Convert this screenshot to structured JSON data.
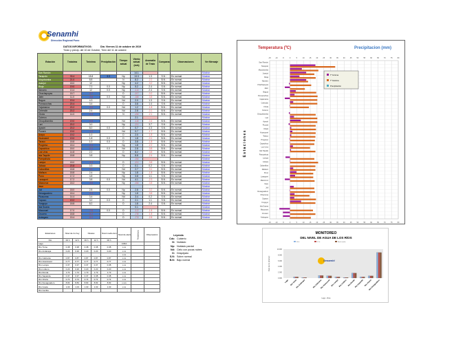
{
  "header": {
    "logo_name": "Senamhi",
    "logo_sub": "Dirección Regional Puno",
    "info_label": "DATOS INFORMATIVOS:",
    "date": "Día: Viernes 11 de octubre de 2019",
    "note": "Tmáx y precip. del 10 de Octubre, Tmín del 11 de octubre"
  },
  "stations": {
    "columns": [
      "Estación",
      "Tmáxima",
      "Tmínima",
      "Precipitación",
      "Tiempo actual",
      "Viento actual (m/s)",
      "Anomalía de Tmáx",
      "Comparación",
      "Observaciones",
      "Ver Mensaje"
    ],
    "rows": [
      {
        "name": "San Ramón",
        "tmax": "",
        "tmin": "",
        "pp": "",
        "tiempo": "",
        "viento": "14.1",
        "anom": "",
        "comp": "",
        "dir": "",
        "obs": "",
        "link": "Mostrar",
        "group": "green"
      },
      {
        "name": "Tarapoto",
        "tmax": "33.4",
        "tmin": "18.8",
        "pp": "3.3",
        "tiempo": "Np",
        "viento": "13.3",
        "anom": "1.3",
        "comp": "S.N",
        "dir": "up",
        "obs": "En normal",
        "link": "Mostrar",
        "group": "green"
      },
      {
        "name": "Moyobamba",
        "tmax": "21.0",
        "tmin": "8.8",
        "pp": "",
        "tiempo": "N",
        "viento": "8.2",
        "anom": "-2.2",
        "comp": "B.N",
        "dir": "dn",
        "obs": "En normal",
        "link": "Mostrar",
        "group": "green"
      },
      {
        "name": "Juanjuí",
        "tmax": "18.0",
        "tmin": "12",
        "pp": "",
        "tiempo": "Np",
        "viento": "4.2",
        "anom": "-3.2",
        "comp": "B.N",
        "dir": "dn",
        "obs": "En normal",
        "link": "Mostrar",
        "group": "green"
      },
      {
        "name": "Rioja",
        "tmax": "19.0",
        "tmin": "7.0",
        "pp": "0.0",
        "tiempo": "Np",
        "viento": "5.2",
        "anom": "2.4",
        "comp": "S.N",
        "dir": "up",
        "obs": "En normal",
        "link": "Mostrar",
        "group": "green"
      },
      {
        "name": "Navarro",
        "tmax": "13.4",
        "tmin": "12",
        "pp": "0.0",
        "tiempo": "Np",
        "viento": "-1.4",
        "anom": "2.4",
        "comp": "S.N",
        "dir": "up",
        "obs": "En normal",
        "link": "Mostrar",
        "group": "gray"
      },
      {
        "name": "Chachapoyas",
        "tmax": "15.7",
        "tmin": "-0.7",
        "pp": "",
        "tiempo": "D",
        "viento": "-0.7",
        "anom": "-0.2",
        "comp": "B.N",
        "dir": "dn",
        "obs": "En normal",
        "link": "Mostrar",
        "group": "gray"
      },
      {
        "name": "Jaén",
        "tmax": "11.0",
        "tmin": "-3.8",
        "pp": "0.0",
        "tiempo": "Nd",
        "viento": "-3.8",
        "anom": "-3.8",
        "comp": "B.N",
        "dir": "dn",
        "obs": "En normal",
        "link": "Mostrar",
        "group": "gray"
      },
      {
        "name": "Bagua",
        "tmax": "19.4",
        "tmin": "4.3",
        "pp": "",
        "tiempo": "Nd",
        "viento": "2.0",
        "anom": "1.3",
        "comp": "S.N",
        "dir": "up",
        "obs": "En normal",
        "link": "Mostrar",
        "group": "gray"
      },
      {
        "name": "Pomacochas",
        "tmax": "20.4",
        "tmin": "3.4",
        "pp": "",
        "tiempo": "D",
        "viento": "3.8",
        "anom": "1.4",
        "comp": "S.N",
        "dir": "up",
        "obs": "En normal",
        "link": "Mostrar",
        "group": "gray"
      },
      {
        "name": "Cajamarca",
        "tmax": "20.2",
        "tmin": "-3.8",
        "pp": "0.0",
        "tiempo": "Nd",
        "viento": "1.2",
        "anom": "-1.8",
        "comp": "B.N",
        "dir": "dn",
        "obs": "En normal",
        "link": "Mostrar",
        "group": "gray"
      },
      {
        "name": "Celendín",
        "tmax": "20.2",
        "tmin": "2.4",
        "pp": "",
        "tiempo": "Nd",
        "viento": "2.8",
        "anom": "-0.1",
        "comp": "B.N",
        "dir": "dn",
        "obs": "En normal",
        "link": "Mostrar",
        "group": "gray"
      },
      {
        "name": "Chota",
        "tmax": "14.0",
        "tmin": "-0.3",
        "pp": "",
        "tiempo": "N",
        "viento": "-2.6",
        "anom": "-2.1",
        "comp": "B.N",
        "dir": "dn",
        "obs": "En normal",
        "link": "Mostrar",
        "group": "gray"
      },
      {
        "name": "Cutervo",
        "tmax": "",
        "tmin": "",
        "pp": "",
        "tiempo": "",
        "viento": "2.1",
        "anom": "",
        "comp": "",
        "dir": "",
        "obs": "",
        "link": "Mostrar",
        "group": "gray"
      },
      {
        "name": "Chuquibamba",
        "tmax": "19.0",
        "tmin": "-0.8",
        "pp": "",
        "tiempo": "Nd",
        "viento": "-1.8",
        "anom": "-0.4",
        "comp": "B.N",
        "dir": "dn",
        "obs": "En normal",
        "link": "Mostrar",
        "group": "gray"
      },
      {
        "name": "Lari",
        "tmax": "20.2",
        "tmin": "3.0",
        "pp": "",
        "tiempo": "Np",
        "viento": "-2.1",
        "anom": "3.7",
        "comp": "S.N",
        "dir": "up",
        "obs": "En normal",
        "link": "Mostrar",
        "group": "gray"
      },
      {
        "name": "Ayaviri",
        "tmax": "20.2",
        "tmin": "8.0",
        "pp": "0.0",
        "tiempo": "D",
        "viento": "0.7",
        "anom": "4.3",
        "comp": "S.N",
        "dir": "up",
        "obs": "En normal",
        "link": "Mostrar",
        "group": "gray"
      },
      {
        "name": "Pucará",
        "tmax": "19.0",
        "tmin": "-1.0",
        "pp": "",
        "tiempo": "Nd",
        "viento": "0.7",
        "anom": "-1.7",
        "comp": "B.N",
        "dir": "dn",
        "obs": "En normal",
        "link": "Mostrar",
        "group": "gray"
      },
      {
        "name": "Arapa",
        "tmax": "19.2",
        "tmin": "1.0",
        "pp": "",
        "tiempo": "D",
        "viento": "2.0",
        "anom": "-1.8",
        "comp": "B.N",
        "dir": "dn",
        "obs": "En normal",
        "link": "Mostrar",
        "group": "orange"
      },
      {
        "name": "Huancané",
        "tmax": "19.0",
        "tmin": "1.8",
        "pp": "0.0",
        "tiempo": "D",
        "viento": "1.8",
        "anom": "-0.1",
        "comp": "B.N",
        "dir": "dn",
        "obs": "En normal",
        "link": "Mostrar",
        "group": "orange"
      },
      {
        "name": "Taraco",
        "tmax": "18.8",
        "tmin": "1.0",
        "pp": "0.0",
        "tiempo": "D",
        "viento": "3.8",
        "anom": "-1.8",
        "comp": "B.N",
        "dir": "dn",
        "obs": "En normal",
        "link": "Mostrar",
        "group": "orange"
      },
      {
        "name": "Progreso",
        "tmax": "18.4",
        "tmin": "-0.4",
        "pp": "",
        "tiempo": "Np",
        "viento": "1.8",
        "anom": "-2.2",
        "comp": "B.N",
        "dir": "dn",
        "obs": "En normal",
        "link": "Mostrar",
        "group": "orange"
      },
      {
        "name": "Capachica",
        "tmax": "18.0",
        "tmin": "-0.2",
        "pp": "0.0",
        "tiempo": "Nd",
        "viento": "2.8",
        "anom": "-3.8",
        "comp": "B.N",
        "dir": "dn",
        "obs": "En normal",
        "link": "Mostrar",
        "group": "orange"
      },
      {
        "name": "Los Uros",
        "tmax": "14.8",
        "tmin": "2.2",
        "pp": "",
        "tiempo": "D",
        "viento": "8.2",
        "anom": "-3.8",
        "comp": "B.N",
        "dir": "dn",
        "obs": "En normal",
        "link": "Mostrar",
        "group": "orange"
      },
      {
        "name": "Isla Taquile",
        "tmax": "18.8",
        "tmin": "0.8",
        "pp": "",
        "tiempo": "Np",
        "viento": "8.8",
        "anom": "-2.4",
        "comp": "B.N",
        "dir": "dn",
        "obs": "En normal",
        "link": "Mostrar",
        "group": "orange"
      },
      {
        "name": "Pampahuta",
        "tmax": "",
        "tmin": "",
        "pp": "",
        "tiempo": "",
        "viento": "-0.6",
        "anom": "",
        "comp": "",
        "dir": "",
        "obs": "",
        "link": "Mostrar",
        "group": "orange"
      },
      {
        "name": "Lampa",
        "tmax": "18.0",
        "tmin": "-3.3",
        "pp": "",
        "tiempo": "D",
        "viento": "-2.1",
        "anom": "-3.8",
        "comp": "B.N",
        "dir": "dn",
        "obs": "En normal",
        "link": "Mostrar",
        "group": "orange"
      },
      {
        "name": "Juliaca",
        "tmax": "20.8",
        "tmin": "0.3",
        "pp": "",
        "tiempo": "D",
        "viento": "0.1",
        "anom": "0.2",
        "comp": "S.N",
        "dir": "up",
        "obs": "En normal",
        "link": "Mostrar",
        "group": "orange"
      },
      {
        "name": "Cabanillas",
        "tmax": "18.8",
        "tmin": "0.0",
        "pp": "",
        "tiempo": "Nd",
        "viento": "2.7",
        "anom": "-3.1",
        "comp": "B.N",
        "dir": "dn",
        "obs": "En normal",
        "link": "Mostrar",
        "group": "orange"
      },
      {
        "name": "Mañazo",
        "tmax": "18.8",
        "tmin": "2.4",
        "pp": "",
        "tiempo": "Np",
        "viento": "1.8",
        "anom": "-1.8",
        "comp": "B.N",
        "dir": "dn",
        "obs": "En normal",
        "link": "Mostrar",
        "group": "orange"
      },
      {
        "name": "Puno",
        "tmax": "17.2",
        "tmin": "4.8",
        "pp": "",
        "tiempo": "Np",
        "viento": "3.8",
        "anom": "1.1",
        "comp": "S.N",
        "dir": "up",
        "obs": "En normal",
        "link": "Mostrar",
        "group": "orange"
      },
      {
        "name": "Laraqueri",
        "tmax": "17.2",
        "tmin": "3.8",
        "pp": "0.0",
        "tiempo": "Nd",
        "viento": "4.1",
        "anom": "-2.3",
        "comp": "B.N",
        "dir": "dn",
        "obs": "En normal",
        "link": "Mostrar",
        "group": "orange"
      },
      {
        "name": "Mazocruz",
        "tmax": "18.2",
        "tmin": "-3.8",
        "pp": "",
        "tiempo": "Np",
        "viento": "-0.6",
        "anom": "-3.8",
        "comp": "B.N",
        "dir": "dn",
        "obs": "En normal",
        "link": "Mostrar",
        "group": "orange"
      },
      {
        "name": "Ilave",
        "tmax": "",
        "tmin": "",
        "pp": "",
        "tiempo": "",
        "viento": "",
        "anom": "",
        "comp": "",
        "dir": "",
        "obs": "",
        "link": "Mostrar",
        "group": "orange"
      },
      {
        "name": "Juli",
        "tmax": "18.0",
        "tmin": "2.8",
        "pp": "0.0",
        "tiempo": "Np",
        "viento": "2.8",
        "anom": "-3.2",
        "comp": "B.N",
        "dir": "dn",
        "obs": "En normal",
        "link": "Mostrar",
        "group": "blue"
      },
      {
        "name": "Desaguadero",
        "tmax": "18.4",
        "tmin": "-0.3",
        "pp": "",
        "tiempo": "Np",
        "viento": "1.8",
        "anom": "-3.8",
        "comp": "B.N",
        "dir": "dn",
        "obs": "En normal",
        "link": "Mostrar",
        "group": "blue"
      },
      {
        "name": "Pizacoma",
        "tmax": "14.4",
        "tmin": "3.4",
        "pp": "",
        "tiempo": "Nd",
        "viento": "3.4",
        "anom": "0.2",
        "comp": "S.N",
        "dir": "up",
        "obs": "En normal",
        "link": "Mostrar",
        "group": "blue"
      },
      {
        "name": "Capazo",
        "tmax": "19.2",
        "tmin": "3.2",
        "pp": "0.0",
        "tiempo": "D",
        "viento": "2.1",
        "anom": "1.1",
        "comp": "S.N",
        "dir": "up",
        "obs": "En normal",
        "link": "Mostrar",
        "group": "blue"
      },
      {
        "name": "Yunguyo",
        "tmax": "18.8",
        "tmin": "8.2",
        "pp": "",
        "tiempo": "D",
        "viento": "1.8",
        "anom": "2.4",
        "comp": "S.N",
        "dir": "up",
        "obs": "En normal",
        "link": "Mostrar",
        "group": "blue"
      },
      {
        "name": "Isla Suana",
        "tmax": "",
        "tmin": "",
        "pp": "",
        "tiempo": "",
        "viento": "0.1",
        "anom": "",
        "comp": "",
        "dir": "",
        "obs": "",
        "link": "Mostrar",
        "group": "blue"
      },
      {
        "name": "Macusani",
        "tmax": "17.0",
        "tmin": "-7.8",
        "pp": "0.0",
        "tiempo": "D",
        "viento": "-1.2",
        "anom": "-1.8",
        "comp": "B.N",
        "dir": "dn",
        "obs": "En normal",
        "link": "Mostrar",
        "group": "blue"
      },
      {
        "name": "Crucero",
        "tmax": "18.8",
        "tmin": "-5.2",
        "pp": "",
        "tiempo": "D",
        "viento": "-7.8",
        "anom": "-1.8",
        "comp": "B.N",
        "dir": "dn",
        "obs": "En normal",
        "link": "Mostrar",
        "group": "blue"
      },
      {
        "name": "Azángaro",
        "tmax": "15.4",
        "tmin": "-5.2",
        "pp": "",
        "tiempo": "D",
        "viento": "-7.3",
        "anom": "-2.8",
        "comp": "B.N",
        "dir": "dn",
        "obs": "En normal",
        "link": "Mostrar",
        "group": "blue"
      }
    ]
  },
  "rivers": {
    "headers": {
      "station": "Estaciones",
      "today": "Nivel de río hoy",
      "levels": "Niveles",
      "mean": "Nivel medio del día",
      "alert": "Nivel de alerta",
      "trend": "Tendencia",
      "obs": "Observación"
    },
    "subheaders": {
      "station": "Río",
      "h1": "06 h",
      "h2": "12 h",
      "h3": "06 h",
      "h4": "12 h",
      "h5": "06 h"
    },
    "rows": [
      {
        "name": "Lago",
        "a": "",
        "b": "",
        "c": "",
        "d": "",
        "e": "",
        "alert": "3.810"
      },
      {
        "name": "Río Tume",
        "a": "0.38",
        "b": "0.38",
        "c": "0.38",
        "d": "0.38",
        "e": "0.38",
        "alert": "x.xx"
      },
      {
        "name": "Río Andarapa",
        "a": "0.20",
        "b": "0.20",
        "c": "0.20",
        "d": "0.20",
        "e": "0.20",
        "alert": "x.xx"
      },
      {
        "name": "",
        "a": "",
        "b": "",
        "c": "",
        "d": "",
        "e": "",
        "alert": "x.xx"
      },
      {
        "name": "Río Calicanto",
        "a": "0.87",
        "b": "0.87",
        "c": "0.87",
        "d": "0.87",
        "e": "0.87",
        "alert": "x.xx"
      },
      {
        "name": "Río Huancavel",
        "a": "0.77",
        "b": "0.77",
        "c": "0.77",
        "d": "0.77",
        "e": "0.77",
        "alert": "x.xx"
      },
      {
        "name": "Río Lampa",
        "a": "0.37",
        "b": "0.37",
        "c": "0.37",
        "d": "0.37",
        "e": "0.38",
        "alert": "x.xx"
      },
      {
        "name": "Río Lindero",
        "a": "0.20",
        "b": "0.20",
        "c": "0.20",
        "d": "0.20",
        "e": "0.20",
        "alert": "x.xx"
      },
      {
        "name": "Río Ronda",
        "a": "1.74",
        "b": "1.74",
        "c": "1.73",
        "d": "1.73",
        "e": "1.73",
        "alert": "x.xx"
      },
      {
        "name": "Río Sapanda",
        "a": "0.37",
        "b": "0.37",
        "c": "0.37",
        "d": "0.38",
        "e": "0.38",
        "alert": "x.xx"
      },
      {
        "name": "Río Vitoria",
        "a": "0.74",
        "b": "0.74",
        "c": "0.74",
        "d": "0.74",
        "e": "0.74",
        "alert": "x.xx"
      },
      {
        "name": "Río Desaguadero",
        "a": "8.83",
        "b": "8.83",
        "c": "8.83",
        "d": "8.83",
        "e": "8.83",
        "alert": "x.xxx"
      },
      {
        "name": "Río Coata",
        "a": "1.03",
        "b": "1.03",
        "c": "1.03",
        "d": "1.03",
        "e": "1.03",
        "alert": "x.xx"
      },
      {
        "name": "Río Cecilia",
        "a": "",
        "b": "",
        "c": "",
        "d": "",
        "e": "",
        "alert": ""
      }
    ]
  },
  "legend": {
    "title": "Leyenda",
    "items": [
      {
        "k": "Cds:",
        "v": "Cubierto"
      },
      {
        "k": "N:",
        "v": "Nublado"
      },
      {
        "k": "Np:",
        "v": "Nublado parcial"
      },
      {
        "k": "Nd:",
        "v": "Cielo con pocas nubes"
      },
      {
        "k": "D:",
        "v": "Despejado"
      },
      {
        "k": "S.N:",
        "v": "Sobre normal"
      },
      {
        "k": "B.N:",
        "v": "Bajo normal"
      }
    ]
  },
  "colors": {
    "tmin": "#9b1b9b",
    "tmax": "#d9691f",
    "precip": "#4bacc6",
    "river1": "#8db3e2",
    "river2": "#c0504d",
    "river3": "#8c5a3c"
  },
  "chart_data": [
    {
      "type": "bar",
      "orientation": "horizontal",
      "title_left": "Temperatura (ºC)",
      "title_right": "Precipitacion (mm)",
      "ylabel": "E s t a c i o n e s",
      "xlim": [
        -15,
        80
      ],
      "xticks": [
        -15,
        -10,
        -5,
        0,
        5,
        10,
        15,
        20,
        25,
        30,
        35,
        40,
        45,
        50,
        55,
        60,
        65,
        70,
        75,
        80
      ],
      "grid": true,
      "legend_position": "top-right",
      "series": [
        {
          "name": "T°mínima",
          "key": "tmin"
        },
        {
          "name": "T°máxima",
          "key": "tmax"
        },
        {
          "name": "Precipitación",
          "key": "pp"
        }
      ],
      "source": "stations.rows"
    },
    {
      "type": "bar",
      "title": "MONITOREO",
      "subtitle": "DEL NIVEL DE AGUA DE LOS RÍOS",
      "xlabel": "Lago - Ríos",
      "ylabel": "Nivel de río (metros)",
      "ylim": [
        0,
        10
      ],
      "yticks": [
        "0.000",
        "2.000",
        "4.000",
        "6.000",
        "8.000",
        "10.000"
      ],
      "categories": [
        "Lago",
        "Río Tume",
        "Río Andarapa",
        "",
        "Río Calicanto",
        "Río Huancavel",
        "Río Lampa",
        "Río Lindero",
        "Río Ronda",
        "Río Sapanda",
        "Río Vitoria",
        "Río Desaguadero"
      ],
      "series": [
        {
          "name": "06 h",
          "values": [
            0,
            0.38,
            0.2,
            0,
            0.87,
            0.77,
            0.37,
            0.2,
            1.74,
            0.37,
            0.74,
            8.83
          ]
        },
        {
          "name": "12 h",
          "values": [
            0,
            0.38,
            0.2,
            0,
            0.87,
            0.77,
            0.37,
            0.2,
            1.74,
            0.37,
            0.74,
            8.83
          ]
        },
        {
          "name": "Nivel medio",
          "values": [
            0,
            0.38,
            0.2,
            0,
            0.87,
            0.77,
            0.38,
            0.2,
            1.73,
            0.38,
            0.74,
            8.83
          ]
        }
      ]
    }
  ]
}
